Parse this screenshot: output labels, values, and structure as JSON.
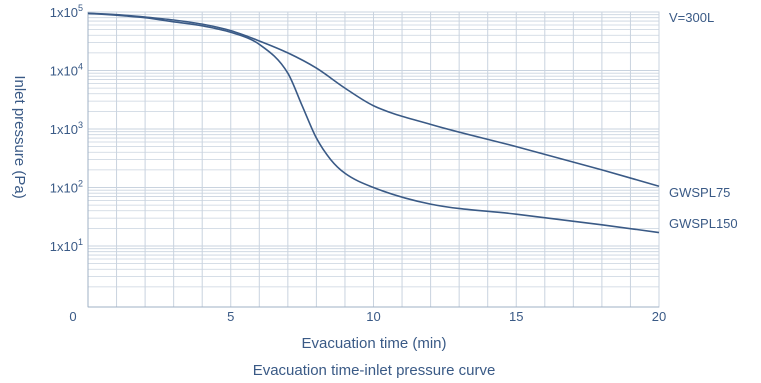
{
  "chart_data": {
    "type": "line",
    "title": "Evacuation time-inlet pressure curve",
    "xlabel": "Evacuation time (min)",
    "ylabel": "Inlet pressure (Pa)",
    "xlim": [
      0,
      20
    ],
    "ylim": [
      1,
      100000
    ],
    "y_scale": "log",
    "x_ticks": [
      {
        "value": 0,
        "label": "0"
      },
      {
        "value": 5,
        "label": "5"
      },
      {
        "value": 10,
        "label": "10"
      },
      {
        "value": 15,
        "label": "15"
      },
      {
        "value": 20,
        "label": "20"
      }
    ],
    "y_ticks": [
      {
        "value": 100000,
        "base": "1x10",
        "exp": "5"
      },
      {
        "value": 10000,
        "base": "1x10",
        "exp": "4"
      },
      {
        "value": 1000,
        "base": "1x10",
        "exp": "3"
      },
      {
        "value": 100,
        "base": "1x10",
        "exp": "2"
      },
      {
        "value": 10,
        "base": "1x10",
        "exp": "1"
      }
    ],
    "annotation": "V=300L",
    "grid": true,
    "line_color": "#3a5a86",
    "series": [
      {
        "name": "GWSPL75",
        "x": [
          0,
          1,
          2,
          3,
          4,
          5,
          6,
          7,
          8,
          9,
          10,
          12,
          15,
          18,
          20
        ],
        "y": [
          95000,
          90000,
          82000,
          73000,
          62000,
          48000,
          32000,
          20000,
          11000,
          5000,
          2500,
          1200,
          500,
          200,
          105
        ]
      },
      {
        "name": "GWSPL150",
        "x": [
          0,
          1,
          2,
          3,
          4,
          5,
          6,
          7,
          7.5,
          8,
          8.5,
          9,
          10,
          12,
          15,
          18,
          20
        ],
        "y": [
          95000,
          88000,
          80000,
          68000,
          58000,
          45000,
          28000,
          9000,
          2500,
          700,
          300,
          175,
          100,
          52,
          35,
          23,
          17
        ]
      }
    ]
  }
}
